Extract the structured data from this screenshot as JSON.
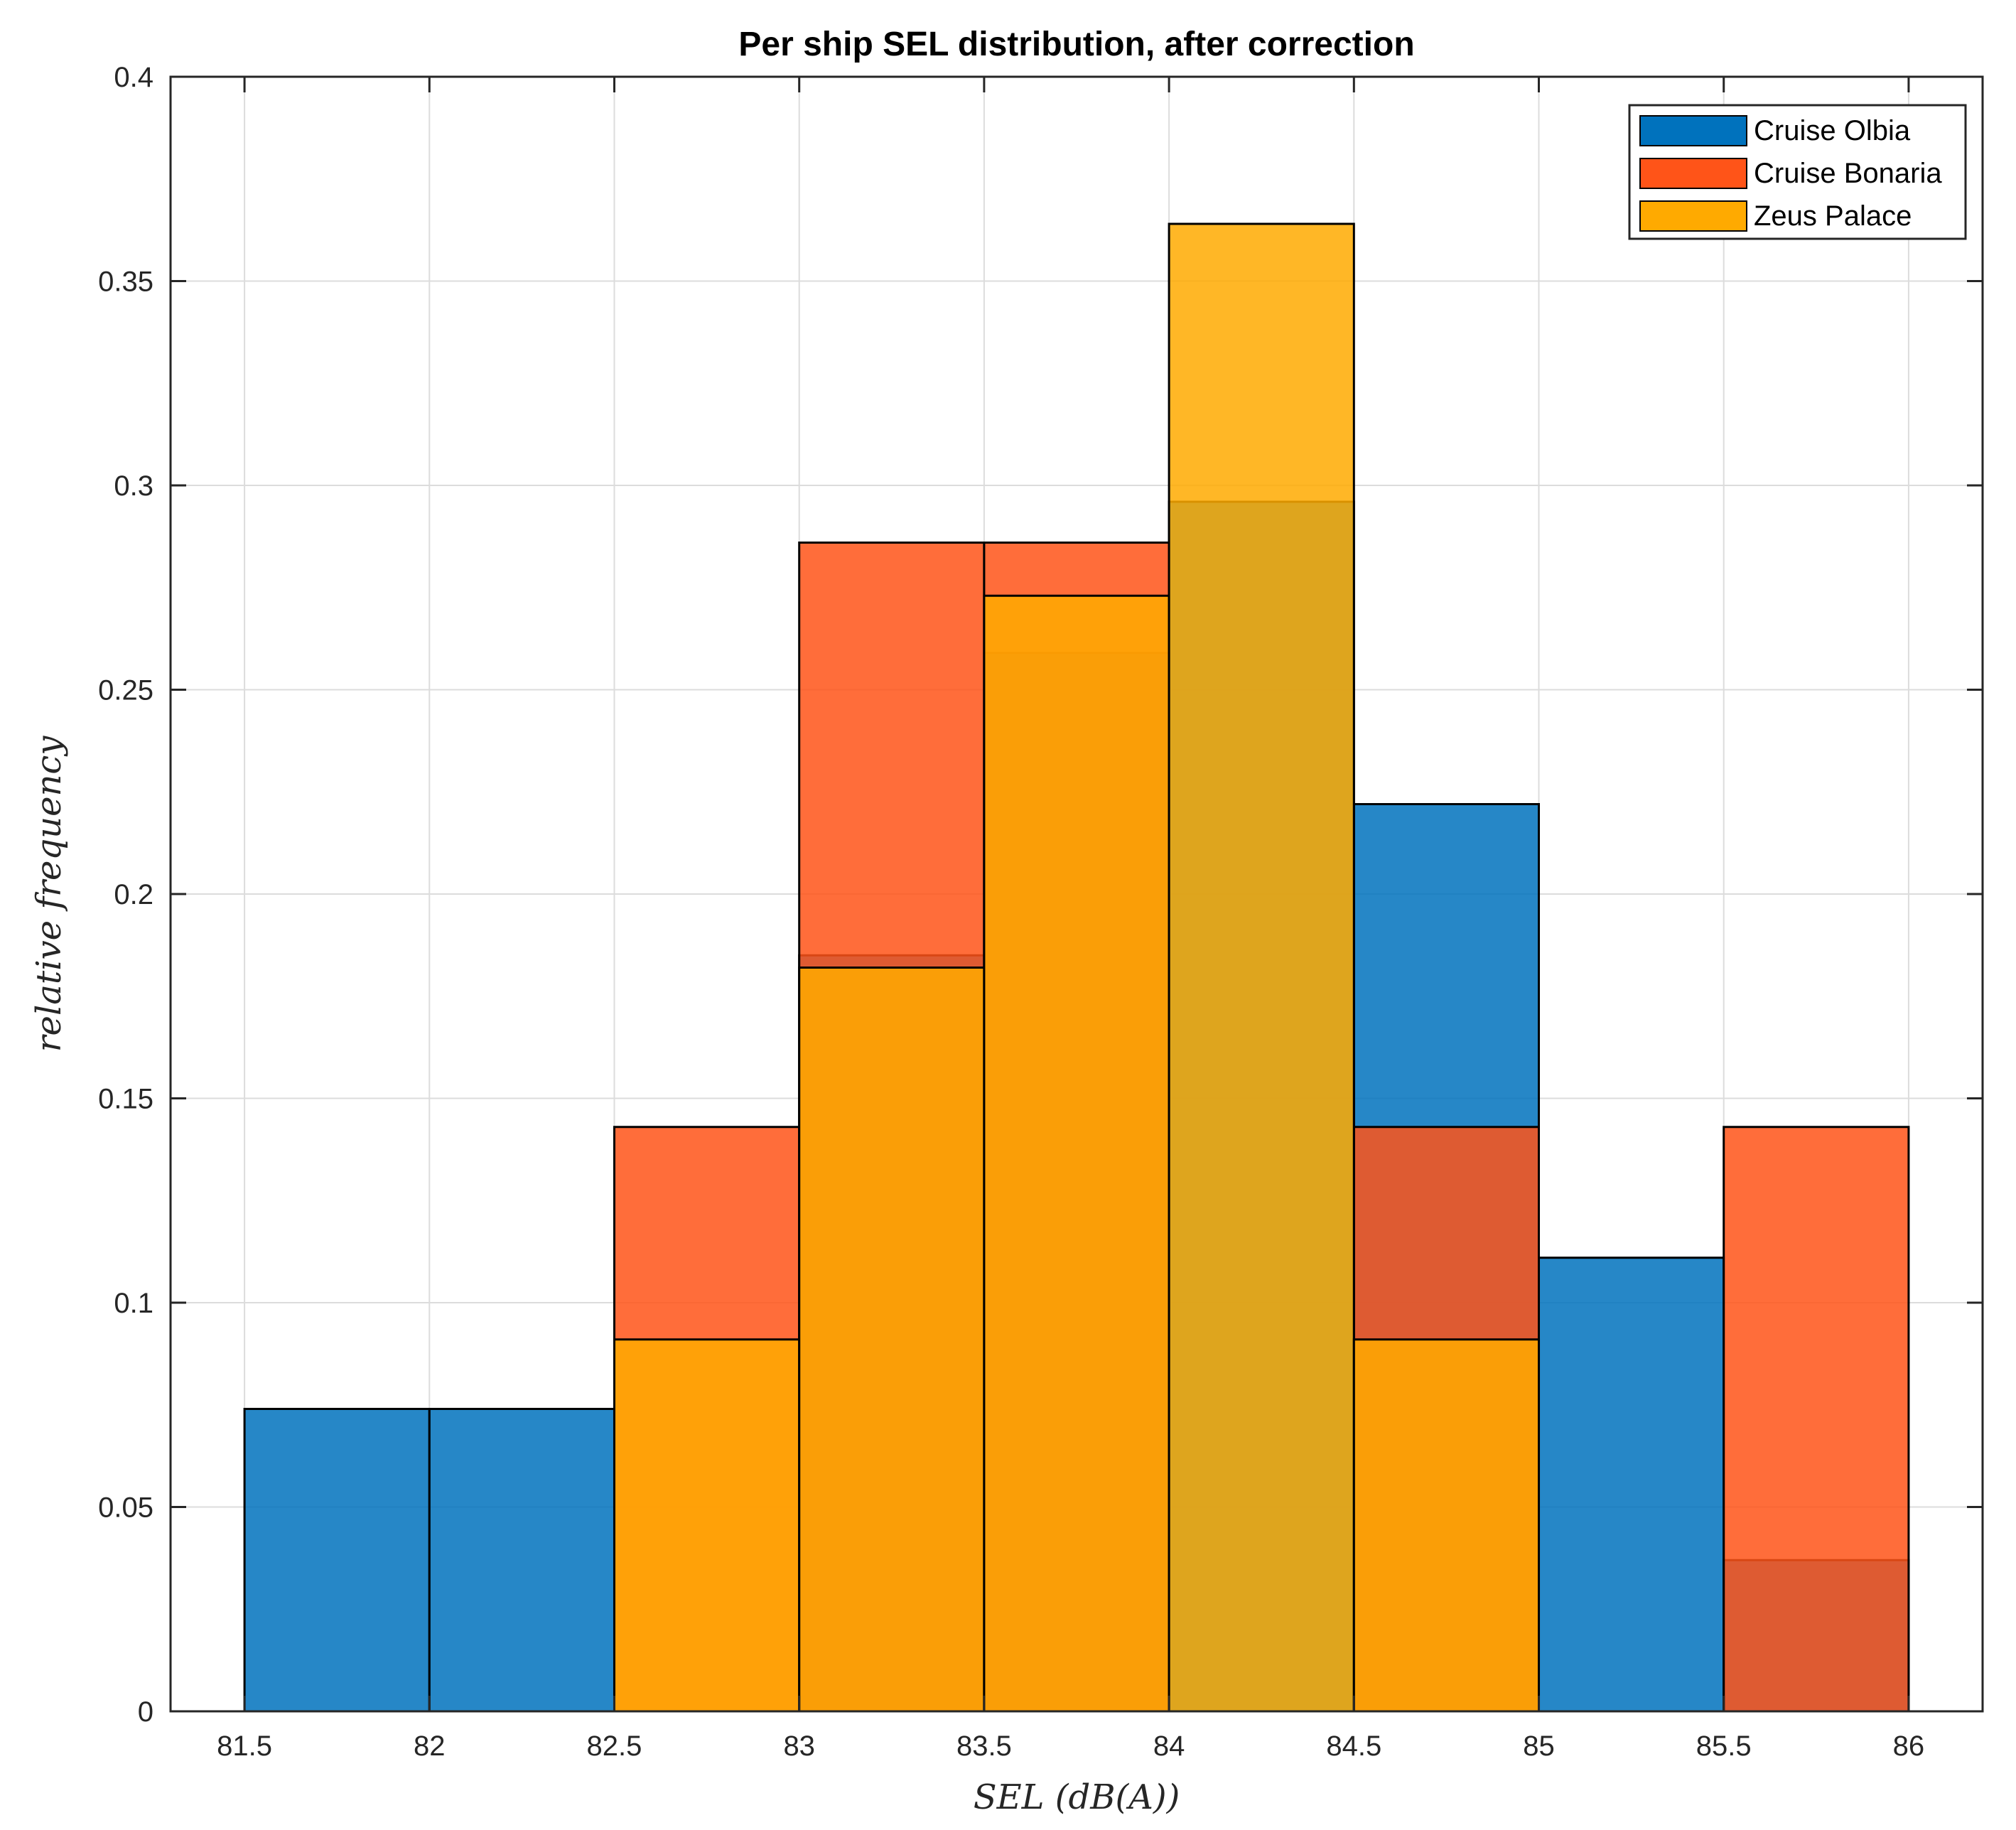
{
  "chart_data": {
    "type": "bar",
    "subtype": "overlaid-histogram",
    "title": "Per ship SEL distribution, after correction",
    "xlabel": "SEL (dB(A))",
    "ylabel": "relative frequency",
    "xlim": [
      81.3,
      86.2
    ],
    "ylim": [
      0,
      0.4
    ],
    "xticks": [
      "81.5",
      "82",
      "82.5",
      "83",
      "83.5",
      "84",
      "84.5",
      "85",
      "85.5",
      "86"
    ],
    "xtick_values": [
      81.5,
      82,
      82.5,
      83,
      83.5,
      84,
      84.5,
      85,
      85.5,
      86
    ],
    "yticks": [
      "0",
      "0.05",
      "0.1",
      "0.15",
      "0.2",
      "0.25",
      "0.3",
      "0.35",
      "0.4"
    ],
    "ytick_values": [
      0,
      0.05,
      0.1,
      0.15,
      0.2,
      0.25,
      0.3,
      0.35,
      0.4
    ],
    "grid": true,
    "legend_position": "top-right",
    "bin_width": 0.5,
    "series": [
      {
        "name": "Cruise Olbia",
        "color": "#0072BD",
        "bin_starts": [
          81.5,
          82,
          82.5,
          83,
          83.5,
          84,
          84.5,
          85,
          85.5
        ],
        "values": [
          0.074,
          0.074,
          0.0,
          0.185,
          0.259,
          0.296,
          0.222,
          0.111,
          0.037
        ]
      },
      {
        "name": "Cruise Bonaria",
        "color": "#FF5418",
        "bin_starts": [
          82.5,
          83,
          83.5,
          84,
          84.5,
          85,
          85.5
        ],
        "values": [
          0.143,
          0.286,
          0.286,
          0.0,
          0.143,
          0.0,
          0.143
        ]
      },
      {
        "name": "Zeus Palace",
        "color": "#FFAA00",
        "bin_starts": [
          82.5,
          83,
          83.5,
          84,
          84.5
        ],
        "values": [
          0.091,
          0.182,
          0.273,
          0.364,
          0.091
        ]
      }
    ]
  }
}
